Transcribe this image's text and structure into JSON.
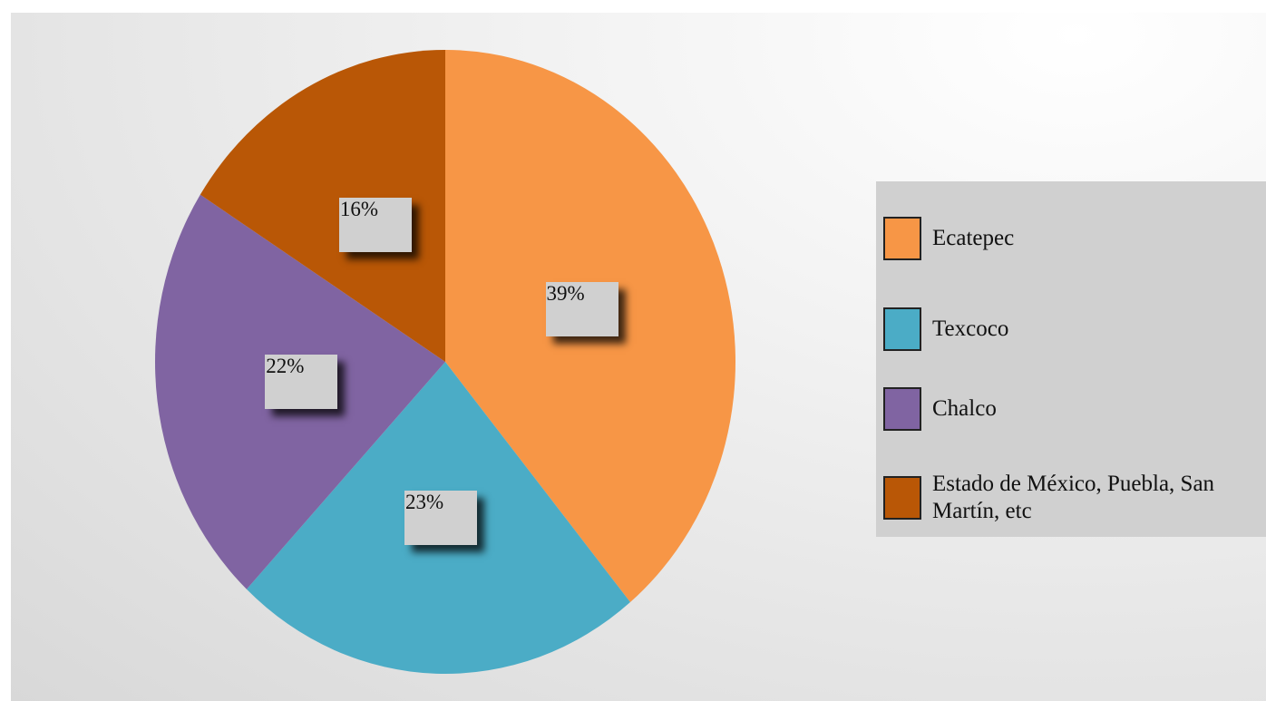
{
  "chart_data": {
    "type": "pie",
    "categories": [
      "Ecatepec",
      "Texcoco",
      "Chalco",
      "Estado de México, Puebla, San Martín, etc"
    ],
    "values": [
      39,
      23,
      22,
      16
    ],
    "value_labels": [
      "39%",
      "23%",
      "22%",
      "16%"
    ],
    "colors": [
      "#f79646",
      "#4bacc6",
      "#8064a2",
      "#b95706"
    ]
  }
}
